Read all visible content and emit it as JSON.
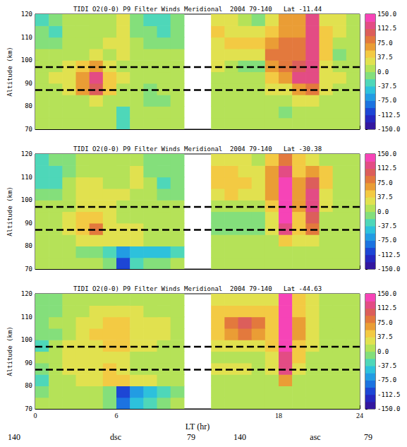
{
  "chart_data": [
    {
      "type": "heatmap",
      "title": "TIDI O2(0-0) P9 Filter Winds Meridional  2004 79-140   Lat -11.44",
      "ylabel": "Altitude (km)",
      "tick_labels": "y",
      "xlim": [
        0,
        24
      ],
      "xticks": [
        0,
        6,
        18,
        24
      ],
      "ylim": [
        70,
        120
      ],
      "yticks": [
        70,
        80,
        90,
        100,
        110,
        120
      ],
      "x": [
        0.5,
        1.5,
        2.5,
        3.5,
        4.5,
        5.5,
        6.5,
        7.5,
        8.5,
        9.5,
        10.5,
        11.5,
        12.5,
        13.5,
        14.5,
        15.5,
        16.5,
        17.5,
        18.5,
        19.5,
        20.5,
        21.5,
        22.5,
        23.5
      ],
      "y": [
        72.5,
        77.5,
        82.5,
        87.5,
        92.5,
        97.5,
        102.5,
        107.5,
        112.5,
        117.5
      ],
      "values": [
        [
          0,
          0,
          0,
          0,
          0,
          0,
          -30,
          0,
          0,
          0,
          0,
          null,
          null,
          0,
          0,
          0,
          0,
          0,
          0,
          0,
          0,
          0,
          0,
          0
        ],
        [
          0,
          0,
          5,
          5,
          5,
          0,
          -25,
          5,
          0,
          0,
          0,
          null,
          null,
          0,
          0,
          0,
          0,
          0,
          -10,
          0,
          5,
          0,
          0,
          0
        ],
        [
          5,
          5,
          10,
          15,
          20,
          10,
          5,
          0,
          -5,
          -5,
          0,
          null,
          null,
          5,
          0,
          0,
          5,
          5,
          10,
          20,
          20,
          5,
          5,
          5
        ],
        [
          10,
          10,
          25,
          60,
          110,
          40,
          10,
          0,
          -5,
          0,
          0,
          null,
          null,
          10,
          5,
          5,
          10,
          20,
          30,
          60,
          80,
          20,
          15,
          10
        ],
        [
          15,
          20,
          35,
          70,
          120,
          50,
          20,
          5,
          5,
          5,
          5,
          null,
          null,
          15,
          10,
          5,
          10,
          40,
          70,
          120,
          130,
          30,
          30,
          15
        ],
        [
          10,
          15,
          20,
          40,
          60,
          30,
          15,
          10,
          5,
          10,
          10,
          null,
          null,
          20,
          15,
          -15,
          -10,
          70,
          80,
          100,
          130,
          30,
          10,
          10
        ],
        [
          0,
          5,
          10,
          15,
          20,
          15,
          25,
          10,
          0,
          5,
          10,
          null,
          null,
          30,
          20,
          30,
          35,
          90,
          90,
          90,
          130,
          40,
          -10,
          0
        ],
        [
          -10,
          -10,
          10,
          10,
          15,
          20,
          30,
          0,
          -5,
          -10,
          -5,
          null,
          null,
          35,
          40,
          40,
          40,
          70,
          80,
          80,
          130,
          45,
          10,
          5
        ],
        [
          -15,
          -20,
          5,
          5,
          10,
          10,
          25,
          -5,
          -15,
          -20,
          -10,
          null,
          null,
          40,
          30,
          25,
          20,
          50,
          70,
          70,
          130,
          40,
          20,
          10
        ],
        [
          -20,
          -10,
          5,
          0,
          5,
          10,
          20,
          -10,
          -20,
          -25,
          -15,
          null,
          null,
          30,
          20,
          10,
          -15,
          30,
          60,
          60,
          120,
          30,
          20,
          10
        ]
      ],
      "reference_lines": [
        87,
        97
      ],
      "colorbar": {
        "range": [
          -150,
          150
        ],
        "ticks": [
          {
            "value": 150,
            "label": "150.0"
          },
          112.5,
          {
            "value": 75,
            "label": "75.0"
          },
          37.5,
          {
            "value": 0,
            "label": "0.0"
          },
          -37.5,
          {
            "value": -75,
            "label": "-75.0"
          },
          -112.5,
          {
            "value": -150,
            "label": "-150.0"
          }
        ]
      }
    },
    {
      "type": "heatmap",
      "title": "TIDI O2(0-0) P9 Filter Winds Meridional  2004 79-140   Lat -30.38",
      "ylabel": "Altitude (km)",
      "tick_labels": "y",
      "xlim": [
        0,
        24
      ],
      "xticks": [
        0,
        6,
        18,
        24
      ],
      "ylim": [
        70,
        120
      ],
      "yticks": [
        70,
        80,
        90,
        100,
        110,
        120
      ],
      "x": [
        0.5,
        1.5,
        2.5,
        3.5,
        4.5,
        5.5,
        6.5,
        7.5,
        8.5,
        9.5,
        10.5,
        11.5,
        12.5,
        13.5,
        14.5,
        15.5,
        16.5,
        17.5,
        18.5,
        19.5,
        20.5,
        21.5,
        22.5,
        23.5
      ],
      "y": [
        72.5,
        77.5,
        82.5,
        87.5,
        92.5,
        97.5,
        102.5,
        107.5,
        112.5,
        117.5
      ],
      "values": [
        [
          0,
          0,
          0,
          0,
          0,
          -10,
          -110,
          -20,
          -10,
          -5,
          0,
          null,
          null,
          0,
          0,
          0,
          0,
          0,
          0,
          0,
          0,
          0,
          0,
          0
        ],
        [
          0,
          0,
          0,
          -5,
          -5,
          -30,
          -70,
          -45,
          -40,
          -40,
          -30,
          null,
          null,
          0,
          0,
          0,
          0,
          0,
          0,
          0,
          0,
          0,
          0,
          0
        ],
        [
          0,
          5,
          5,
          20,
          30,
          25,
          30,
          30,
          15,
          5,
          0,
          null,
          null,
          0,
          5,
          5,
          5,
          10,
          40,
          20,
          20,
          5,
          0,
          0
        ],
        [
          5,
          10,
          20,
          50,
          75,
          30,
          20,
          25,
          10,
          5,
          0,
          null,
          null,
          -5,
          -10,
          -5,
          -10,
          20,
          130,
          40,
          80,
          10,
          5,
          0
        ],
        [
          10,
          15,
          20,
          40,
          50,
          25,
          15,
          10,
          10,
          5,
          5,
          null,
          null,
          -5,
          -10,
          -15,
          -15,
          30,
          140,
          50,
          110,
          15,
          5,
          5
        ],
        [
          5,
          10,
          15,
          20,
          30,
          20,
          15,
          10,
          5,
          5,
          5,
          null,
          null,
          15,
          10,
          10,
          5,
          50,
          140,
          60,
          120,
          20,
          5,
          5
        ],
        [
          -10,
          -5,
          10,
          20,
          25,
          20,
          20,
          15,
          5,
          -15,
          -5,
          null,
          null,
          35,
          40,
          30,
          30,
          70,
          140,
          70,
          120,
          30,
          5,
          5
        ],
        [
          -20,
          -20,
          5,
          20,
          20,
          15,
          15,
          20,
          0,
          -20,
          -15,
          null,
          null,
          40,
          50,
          40,
          35,
          70,
          140,
          60,
          110,
          40,
          10,
          5
        ],
        [
          -25,
          -20,
          -5,
          15,
          15,
          10,
          15,
          20,
          -5,
          -15,
          -10,
          null,
          null,
          40,
          40,
          35,
          30,
          60,
          120,
          50,
          70,
          40,
          10,
          5
        ],
        [
          -20,
          -15,
          -10,
          10,
          10,
          5,
          10,
          15,
          -10,
          -10,
          -5,
          null,
          null,
          20,
          30,
          20,
          10,
          40,
          80,
          40,
          30,
          10,
          5,
          0
        ]
      ],
      "reference_lines": [
        87,
        97
      ],
      "colorbar": {
        "range": [
          -150,
          150
        ],
        "ticks": [
          {
            "value": 150,
            "label": "150.0"
          },
          112.5,
          {
            "value": 75,
            "label": "75.0"
          },
          37.5,
          {
            "value": 0,
            "label": "0.0"
          },
          -37.5,
          {
            "value": -75,
            "label": "-75.0"
          },
          -112.5,
          {
            "value": -150,
            "label": "-150.0"
          }
        ]
      }
    },
    {
      "type": "heatmap",
      "title": "TIDI O2(0-0) P9 Filter Winds Meridional  2004 79-140   Lat -44.63",
      "ylabel": "Altitude (km)",
      "xlabel": "LT (hr)",
      "annotations": [
        "140",
        "dsc",
        "79",
        "140",
        "asc",
        "79"
      ],
      "xlim": [
        0,
        24
      ],
      "xticks": [
        0,
        6,
        18,
        24
      ],
      "ylim": [
        70,
        120
      ],
      "yticks": [
        70,
        80,
        90,
        100,
        110,
        120
      ],
      "x": [
        0.5,
        1.5,
        2.5,
        3.5,
        4.5,
        5.5,
        6.5,
        7.5,
        8.5,
        9.5,
        10.5,
        11.5,
        12.5,
        13.5,
        14.5,
        15.5,
        16.5,
        17.5,
        18.5,
        19.5,
        20.5,
        21.5,
        22.5,
        23.5
      ],
      "y": [
        72.5,
        77.5,
        82.5,
        87.5,
        92.5,
        97.5,
        102.5,
        107.5,
        112.5,
        117.5
      ],
      "values": [
        [
          0,
          0,
          0,
          0,
          0,
          -10,
          -90,
          -50,
          -30,
          -10,
          0,
          null,
          null,
          0,
          0,
          0,
          0,
          0,
          0,
          0,
          0,
          0,
          0,
          0
        ],
        [
          -5,
          0,
          0,
          5,
          5,
          -10,
          -100,
          -60,
          -40,
          -20,
          -10,
          null,
          null,
          0,
          0,
          0,
          0,
          0,
          10,
          0,
          0,
          0,
          0,
          0
        ],
        [
          -20,
          5,
          10,
          20,
          30,
          40,
          40,
          25,
          20,
          15,
          10,
          null,
          null,
          10,
          10,
          10,
          5,
          10,
          60,
          10,
          5,
          0,
          0,
          0
        ],
        [
          -10,
          10,
          20,
          30,
          35,
          40,
          30,
          15,
          10,
          5,
          5,
          null,
          null,
          30,
          30,
          20,
          10,
          30,
          120,
          30,
          10,
          5,
          0,
          0
        ],
        [
          0,
          10,
          20,
          30,
          30,
          35,
          30,
          15,
          10,
          10,
          5,
          null,
          null,
          15,
          10,
          15,
          15,
          30,
          130,
          40,
          15,
          5,
          0,
          0
        ],
        [
          -20,
          0,
          20,
          30,
          35,
          45,
          40,
          25,
          20,
          15,
          10,
          null,
          null,
          20,
          20,
          25,
          25,
          40,
          140,
          50,
          20,
          5,
          0,
          0
        ],
        [
          -15,
          -5,
          15,
          25,
          40,
          50,
          40,
          30,
          30,
          25,
          15,
          null,
          null,
          40,
          60,
          90,
          60,
          50,
          150,
          60,
          25,
          10,
          5,
          5
        ],
        [
          -5,
          0,
          10,
          20,
          35,
          45,
          40,
          30,
          25,
          20,
          15,
          null,
          null,
          45,
          80,
          100,
          80,
          50,
          150,
          60,
          30,
          15,
          5,
          5
        ],
        [
          -10,
          -5,
          5,
          10,
          20,
          25,
          20,
          20,
          15,
          15,
          10,
          null,
          null,
          40,
          50,
          50,
          40,
          40,
          140,
          50,
          25,
          15,
          5,
          0
        ],
        [
          -10,
          -5,
          0,
          5,
          10,
          10,
          15,
          15,
          10,
          10,
          5,
          null,
          null,
          30,
          30,
          30,
          20,
          30,
          140,
          40,
          20,
          10,
          5,
          0
        ]
      ],
      "reference_lines": [
        87,
        97
      ],
      "colorbar": {
        "range": [
          -150,
          150
        ],
        "ticks": [
          {
            "value": 150,
            "label": "150.0"
          },
          112.5,
          {
            "value": 75,
            "label": "75.0"
          },
          37.5,
          {
            "value": 0,
            "label": "0.0"
          },
          -37.5,
          {
            "value": -75,
            "label": "-75.0"
          },
          -112.5,
          {
            "value": -150,
            "label": "-150.0"
          }
        ]
      }
    }
  ]
}
